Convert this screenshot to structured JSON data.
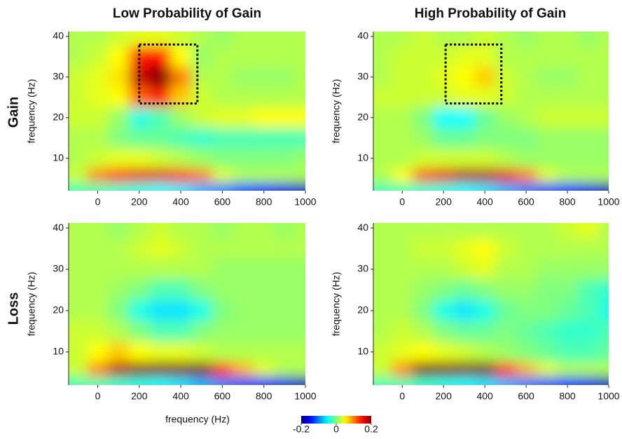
{
  "figure": {
    "column_titles": [
      "Low Probability of Gain",
      "High Probability of Gain"
    ],
    "row_labels": [
      "Gain",
      "Loss"
    ],
    "x_label": "frequency (Hz)",
    "colorbar": {
      "clim": [
        -0.2,
        0.2
      ],
      "ticks": [
        -0.2,
        0,
        0.2
      ],
      "colormap": "jet"
    }
  },
  "chart_data": [
    {
      "type": "heatmap",
      "ylabel": "frequency (Hz)",
      "xlim": [
        -140,
        1000
      ],
      "ylim": [
        2,
        41.2
      ],
      "xticks": [
        0,
        200,
        400,
        600,
        800,
        1000
      ],
      "yticks": [
        10,
        20,
        30,
        40
      ],
      "x": [
        -100,
        0,
        100,
        200,
        300,
        400,
        500,
        600,
        700,
        800,
        900,
        1000
      ],
      "y": [
        40,
        35,
        30,
        25,
        20,
        15,
        10,
        5,
        3
      ],
      "z": [
        [
          0.02,
          0.02,
          0.03,
          0.04,
          0.04,
          0.03,
          0.02,
          0.01,
          0.02,
          0.02,
          0.02,
          0.02
        ],
        [
          0.02,
          0.03,
          0.05,
          0.14,
          0.15,
          0.05,
          0.01,
          0.02,
          0.02,
          0.02,
          0.02,
          0.02
        ],
        [
          0.03,
          0.04,
          0.06,
          0.17,
          0.2,
          0.1,
          0.02,
          0.02,
          0.01,
          0.01,
          0.01,
          0.02
        ],
        [
          0.03,
          0.04,
          0.05,
          0.11,
          0.14,
          0.07,
          0.03,
          0.02,
          0.02,
          0.02,
          0.02,
          0.02
        ],
        [
          0.03,
          0.03,
          0.01,
          -0.04,
          -0.02,
          0.01,
          0.03,
          0.04,
          0.04,
          0.05,
          0.05,
          0.05
        ],
        [
          0.02,
          0.02,
          0,
          -0.01,
          -0.01,
          -0.02,
          -0.03,
          -0.02,
          -0.02,
          -0.02,
          -0.02,
          -0.02
        ],
        [
          0.02,
          0.03,
          0.04,
          0.04,
          0.03,
          0.02,
          0.01,
          0,
          0,
          0,
          0,
          0.01
        ],
        [
          0.03,
          0.1,
          0.15,
          0.16,
          0.16,
          0.14,
          0.1,
          0.04,
          0.02,
          0.02,
          0.02,
          0.02
        ],
        [
          -0.02,
          -0.02,
          -0.03,
          -0.04,
          -0.05,
          -0.06,
          -0.08,
          -0.1,
          -0.12,
          -0.14,
          -0.16,
          -0.18
        ]
      ],
      "box": {
        "x": [
          200,
          480
        ],
        "y": [
          23.5,
          38
        ]
      }
    },
    {
      "type": "heatmap",
      "ylabel": "frequency (Hz)",
      "xlim": [
        -140,
        1000
      ],
      "ylim": [
        2,
        41.2
      ],
      "xticks": [
        0,
        200,
        400,
        600,
        800,
        1000
      ],
      "yticks": [
        10,
        20,
        30,
        40
      ],
      "x": [
        -100,
        0,
        100,
        200,
        300,
        400,
        500,
        600,
        700,
        800,
        900,
        1000
      ],
      "y": [
        40,
        35,
        30,
        25,
        20,
        15,
        10,
        5,
        3
      ],
      "z": [
        [
          0.02,
          0.02,
          0.03,
          0.02,
          0.02,
          0.03,
          0.02,
          0.01,
          0.02,
          0.02,
          0.01,
          0.02
        ],
        [
          0.02,
          0.03,
          0.03,
          0.03,
          0.04,
          0.04,
          0.02,
          0.02,
          0.02,
          0.02,
          0.02,
          0.02
        ],
        [
          0.02,
          0.03,
          0.03,
          0.04,
          0.05,
          0.07,
          0.03,
          0.02,
          0.01,
          0.01,
          0.02,
          0.02
        ],
        [
          0.03,
          0.03,
          0.03,
          0.03,
          0.04,
          0.04,
          0.03,
          0.02,
          0.02,
          0.02,
          0.02,
          0.02
        ],
        [
          0.02,
          0.02,
          0,
          -0.05,
          -0.05,
          -0.01,
          0.01,
          0.02,
          0.03,
          0.03,
          0.03,
          0.03
        ],
        [
          0.02,
          0.02,
          0.01,
          -0.01,
          -0.01,
          0,
          0,
          0,
          0.01,
          0.01,
          0.01,
          0.01
        ],
        [
          0.02,
          0.02,
          0.03,
          0.03,
          0.03,
          0.03,
          0.02,
          0.01,
          0.01,
          0.01,
          0.01,
          0.01
        ],
        [
          0.02,
          0.05,
          0.12,
          0.16,
          0.18,
          0.18,
          0.16,
          0.1,
          0.04,
          0.02,
          0.02,
          0.02
        ],
        [
          -0.02,
          -0.02,
          -0.03,
          -0.04,
          -0.05,
          -0.06,
          -0.08,
          -0.1,
          -0.12,
          -0.14,
          -0.16,
          -0.18
        ]
      ],
      "box": {
        "x": [
          210,
          480
        ],
        "y": [
          23.5,
          38
        ]
      }
    },
    {
      "type": "heatmap",
      "ylabel": "frequency (Hz)",
      "xlim": [
        -140,
        1000
      ],
      "ylim": [
        2,
        41.2
      ],
      "xticks": [
        0,
        200,
        400,
        600,
        800,
        1000
      ],
      "yticks": [
        10,
        20,
        30,
        40
      ],
      "x": [
        -100,
        0,
        100,
        200,
        300,
        400,
        500,
        600,
        700,
        800,
        900,
        1000
      ],
      "y": [
        40,
        35,
        30,
        25,
        20,
        15,
        10,
        5,
        3
      ],
      "z": [
        [
          0.02,
          0.02,
          0.01,
          0.02,
          0.03,
          0.02,
          0.02,
          0.01,
          0.02,
          0.02,
          0.01,
          0.02
        ],
        [
          0.02,
          0.02,
          0.02,
          0.03,
          0.04,
          0.03,
          0.02,
          0.02,
          0.02,
          0.02,
          0.02,
          0.02
        ],
        [
          0.02,
          0.02,
          0.02,
          0.02,
          0.02,
          0.02,
          0.02,
          0.01,
          0.01,
          0.01,
          0.01,
          0.01
        ],
        [
          0.02,
          0.02,
          0.01,
          0,
          -0.02,
          -0.02,
          0,
          0.01,
          0.01,
          0.01,
          0.01,
          0.01
        ],
        [
          0.02,
          0.02,
          0,
          -0.04,
          -0.06,
          -0.06,
          -0.04,
          0,
          0.01,
          0.01,
          0.01,
          0.01
        ],
        [
          0.03,
          0.03,
          0.02,
          0,
          -0.02,
          -0.02,
          0,
          0.01,
          0.01,
          0.01,
          0.01,
          0.01
        ],
        [
          0.03,
          0.05,
          0.07,
          0.05,
          0.04,
          0.04,
          0.03,
          0.02,
          0.02,
          0.02,
          0.02,
          0.02
        ],
        [
          0.03,
          0.1,
          0.18,
          0.22,
          0.24,
          0.24,
          0.2,
          0.14,
          0.08,
          0.04,
          0.02,
          0.02
        ],
        [
          -0.02,
          -0.02,
          -0.03,
          -0.04,
          -0.05,
          -0.06,
          -0.08,
          -0.1,
          -0.12,
          -0.14,
          -0.16,
          -0.18
        ]
      ]
    },
    {
      "type": "heatmap",
      "ylabel": "frequency (Hz)",
      "xlim": [
        -140,
        1000
      ],
      "ylim": [
        2,
        41.2
      ],
      "xticks": [
        0,
        200,
        400,
        600,
        800,
        1000
      ],
      "yticks": [
        10,
        20,
        30,
        40
      ],
      "x": [
        -100,
        0,
        100,
        200,
        300,
        400,
        500,
        600,
        700,
        800,
        900,
        1000
      ],
      "y": [
        40,
        35,
        30,
        25,
        20,
        15,
        10,
        5,
        3
      ],
      "z": [
        [
          0.02,
          0.02,
          0.02,
          0.02,
          0.02,
          0.02,
          0.02,
          0.02,
          0.02,
          0.03,
          0.04,
          0.02
        ],
        [
          0.02,
          0.02,
          0.03,
          0.03,
          0.04,
          0.05,
          0.03,
          0.02,
          0.02,
          0.02,
          0.02,
          0.02
        ],
        [
          0.02,
          0.02,
          0.02,
          0.02,
          0.03,
          0.04,
          0.02,
          0.02,
          0.01,
          0.01,
          0.01,
          0.01
        ],
        [
          0.02,
          0.02,
          0.01,
          0,
          -0.01,
          0,
          0.01,
          0.01,
          0,
          0,
          -0.02,
          -0.03
        ],
        [
          0.02,
          0.02,
          0,
          -0.04,
          -0.06,
          -0.04,
          -0.01,
          0,
          0,
          -0.01,
          -0.02,
          -0.04
        ],
        [
          0.02,
          0.03,
          0.02,
          0,
          -0.01,
          -0.01,
          0,
          -0.01,
          -0.02,
          -0.03,
          -0.03,
          -0.02
        ],
        [
          0.03,
          0.04,
          0.05,
          0.04,
          0.03,
          0.02,
          0.01,
          0,
          -0.01,
          -0.02,
          -0.02,
          -0.01
        ],
        [
          0.03,
          0.1,
          0.2,
          0.24,
          0.24,
          0.2,
          0.14,
          0.08,
          0.04,
          0.02,
          0.02,
          0.02
        ],
        [
          -0.02,
          -0.02,
          -0.03,
          -0.04,
          -0.05,
          -0.06,
          -0.08,
          -0.1,
          -0.12,
          -0.14,
          -0.16,
          -0.18
        ]
      ]
    }
  ]
}
